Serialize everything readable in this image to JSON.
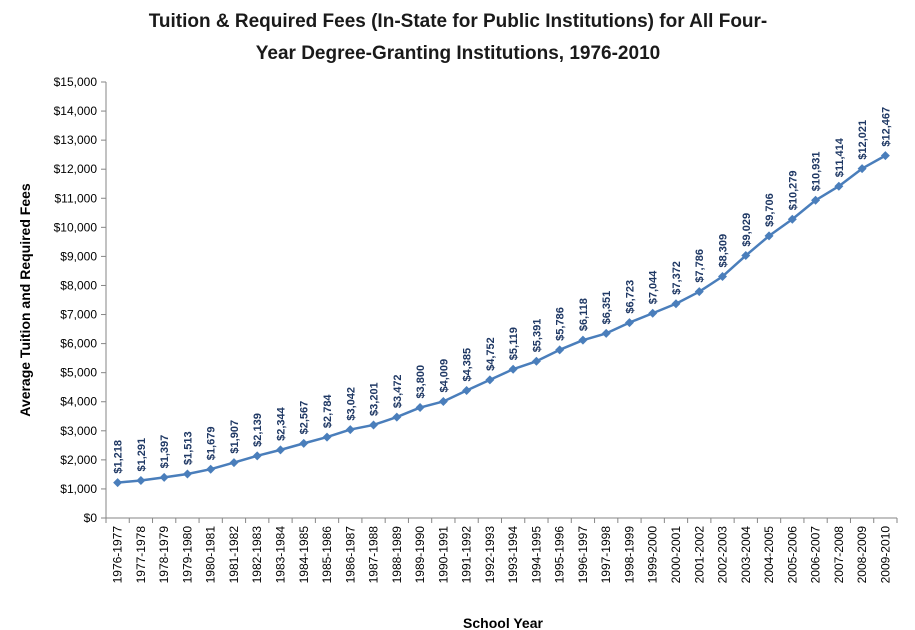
{
  "chart_data": {
    "type": "line",
    "title_lines": [
      "Tuition & Required Fees (In-State for Public Institutions) for All Four-",
      "Year Degree-Granting Institutions, 1976-2010"
    ],
    "xlabel": "School Year",
    "ylabel": "Average Tuition and Required Fees",
    "ylim": [
      0,
      15000
    ],
    "yticks": [
      0,
      1000,
      2000,
      3000,
      4000,
      5000,
      6000,
      7000,
      8000,
      9000,
      10000,
      11000,
      12000,
      13000,
      14000,
      15000
    ],
    "ytick_labels": [
      "$0",
      "$1,000",
      "$2,000",
      "$3,000",
      "$4,000",
      "$5,000",
      "$6,000",
      "$7,000",
      "$8,000",
      "$9,000",
      "$10,000",
      "$11,000",
      "$12,000",
      "$13,000",
      "$14,000",
      "$15,000"
    ],
    "categories": [
      "1976-1977",
      "1977-1978",
      "1978-1979",
      "1979-1980",
      "1980-1981",
      "1981-1982",
      "1982-1983",
      "1983-1984",
      "1984-1985",
      "1985-1986",
      "1986-1987",
      "1987-1988",
      "1988-1989",
      "1989-1990",
      "1990-1991",
      "1991-1992",
      "1992-1993",
      "1993-1994",
      "1994-1995",
      "1995-1996",
      "1996-1997",
      "1997-1998",
      "1998-1999",
      "1999-2000",
      "2000-2001",
      "2001-2002",
      "2002-2003",
      "2003-2004",
      "2004-2005",
      "2005-2006",
      "2006-2007",
      "2007-2008",
      "2008-2009",
      "2009-2010"
    ],
    "values": [
      1218,
      1291,
      1397,
      1513,
      1679,
      1907,
      2139,
      2344,
      2567,
      2784,
      3042,
      3201,
      3472,
      3800,
      4009,
      4385,
      4752,
      5119,
      5391,
      5786,
      6118,
      6351,
      6723,
      7044,
      7372,
      7786,
      8309,
      9029,
      9706,
      10279,
      10931,
      11414,
      12021,
      12467
    ],
    "data_labels": [
      "$1,218",
      "$1,291",
      "$1,397",
      "$1,513",
      "$1,679",
      "$1,907",
      "$2,139",
      "$2,344",
      "$2,567",
      "$2,784",
      "$3,042",
      "$3,201",
      "$3,472",
      "$3,800",
      "$4,009",
      "$4,385",
      "$4,752",
      "$5,119",
      "$5,391",
      "$5,786",
      "$6,118",
      "$6,351",
      "$6,723",
      "$7,044",
      "$7,372",
      "$7,786",
      "$8,309",
      "$9,029",
      "$9,706",
      "$10,279",
      "$10,931",
      "$11,414",
      "$12,021",
      "$12,467"
    ],
    "grid": false,
    "legend": "none",
    "colors": {
      "line": "#4a7ebb",
      "marker": "#4a7ebb",
      "data_label": "#1f3864",
      "axis": "#868686"
    }
  }
}
